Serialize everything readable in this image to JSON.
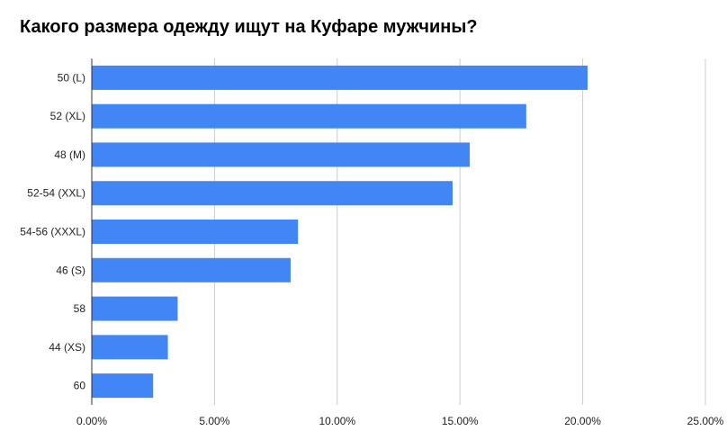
{
  "chart_data": {
    "type": "bar",
    "orientation": "horizontal",
    "title": "Какого размера одежду ищут на Куфаре мужчины?",
    "categories": [
      "50 (L)",
      "52 (XL)",
      "48 (M)",
      "52-54 (XXL)",
      "54-56 (XXXL)",
      "46 (S)",
      "58",
      "44 (XS)",
      "60"
    ],
    "values": [
      20.2,
      17.7,
      15.4,
      14.7,
      8.4,
      8.1,
      3.5,
      3.1,
      2.5
    ],
    "xlim": [
      0,
      25
    ],
    "x_ticks": [
      0,
      5,
      10,
      15,
      20,
      25
    ],
    "x_tick_labels": [
      "0.00%",
      "5.00%",
      "10.00%",
      "15.00%",
      "20.00%",
      "25.00%"
    ],
    "grid": "vertical",
    "legend": "none",
    "bar_color": "#4285f4",
    "grid_color": "#cccccc",
    "axis_color": "#333333"
  }
}
